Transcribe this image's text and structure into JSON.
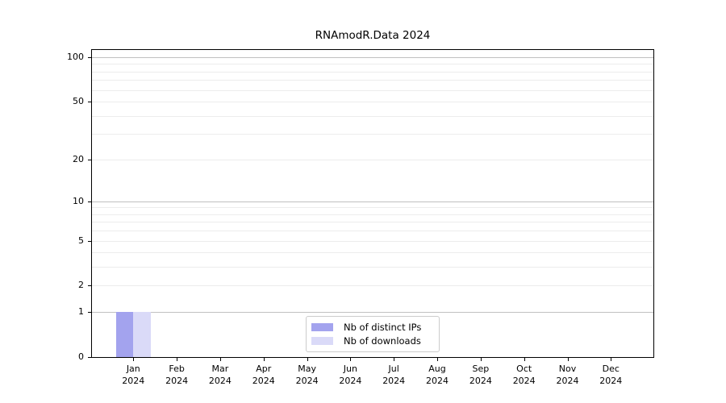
{
  "title": "RNAmodR.Data 2024",
  "chart_data": {
    "type": "bar",
    "title": "RNAmodR.Data 2024",
    "categories": [
      "Jan",
      "Feb",
      "Mar",
      "Apr",
      "May",
      "Jun",
      "Jul",
      "Aug",
      "Sep",
      "Oct",
      "Nov",
      "Dec"
    ],
    "year_label": "2024",
    "series": [
      {
        "name": "Nb of distinct IPs",
        "color": "#a3a3ee",
        "values": [
          1,
          0,
          0,
          0,
          0,
          0,
          0,
          0,
          0,
          0,
          0,
          0
        ]
      },
      {
        "name": "Nb of downloads",
        "color": "#dadaf8",
        "values": [
          1,
          0,
          0,
          0,
          0,
          0,
          0,
          0,
          0,
          0,
          0,
          0
        ]
      }
    ],
    "y_ticks": [
      0,
      1,
      2,
      5,
      10,
      20,
      50,
      100
    ],
    "y_scale": "log10(1+x)",
    "ylim": [
      0,
      113
    ],
    "xlabel": "",
    "ylabel": "",
    "grid": {
      "on": true,
      "major_values": [
        1,
        10,
        100
      ],
      "minor_values": [
        2,
        3,
        4,
        5,
        6,
        7,
        8,
        9,
        20,
        30,
        40,
        50,
        60,
        70,
        80,
        90
      ]
    },
    "legend": {
      "position": "lower center"
    }
  },
  "colors": {
    "major_grid": "#c0c0c0",
    "minor_grid": "#ececec",
    "axis": "#000000",
    "background": "#ffffff"
  }
}
